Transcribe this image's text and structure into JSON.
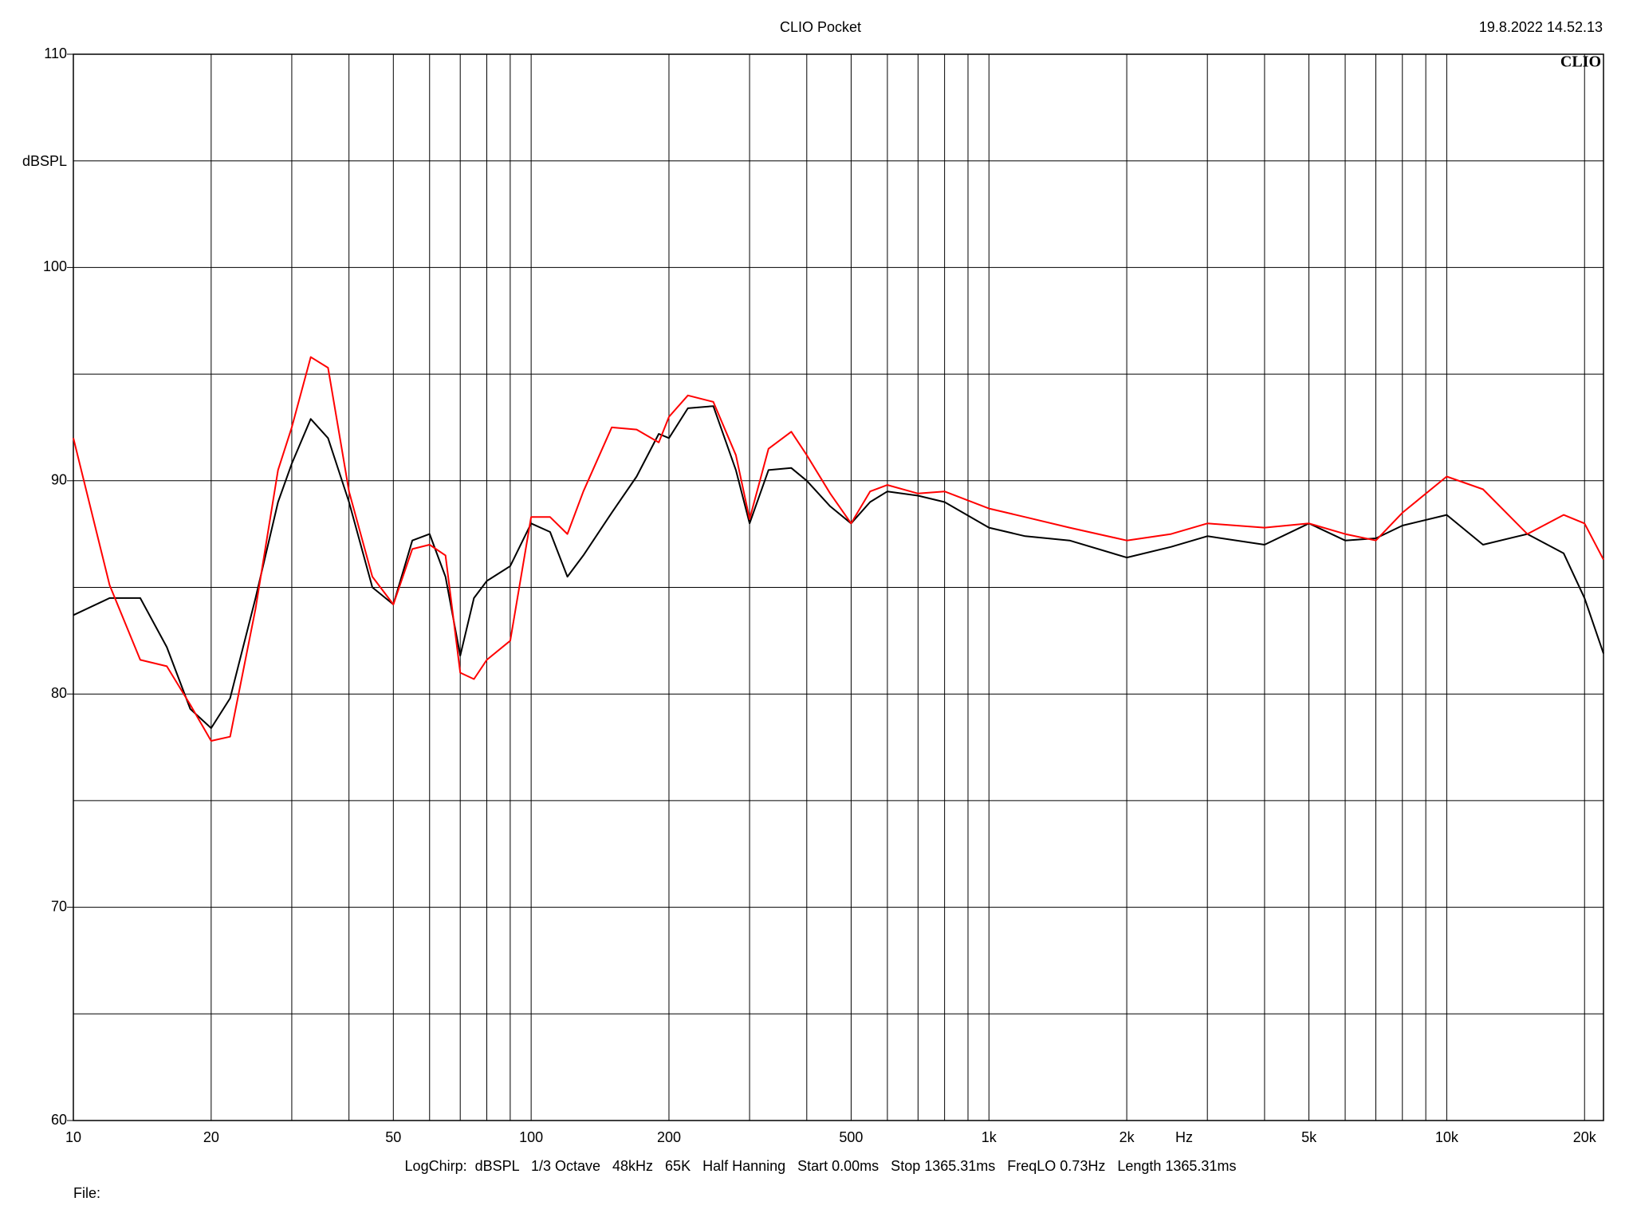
{
  "chart_data": {
    "type": "line",
    "title": "CLIO Pocket",
    "timestamp": "19.8.2022 14.52.13",
    "logo": "CLIO",
    "y_label": "dBSPL",
    "x_label": "Hz",
    "caption": "LogChirp:  dBSPL   1/3 Octave   48kHz   65K   Half Hanning   Start 0.00ms   Stop 1365.31ms   FreqLO 0.73Hz   Length 1365.31ms",
    "file_label": "File:",
    "xscale": "log",
    "grid": true,
    "xlim": [
      10,
      22000
    ],
    "ylim": [
      60,
      110
    ],
    "xticks": [
      10,
      20,
      50,
      100,
      200,
      500,
      {
        "value": 1000,
        "label": "1k"
      },
      {
        "value": 2000,
        "label": "2k"
      },
      {
        "value": 5000,
        "label": "5k"
      },
      {
        "value": 10000,
        "label": "10k"
      },
      {
        "value": 20000,
        "label": "20k"
      }
    ],
    "xgrid_minor": [
      30,
      40,
      60,
      70,
      80,
      90,
      300,
      400,
      600,
      700,
      800,
      900,
      3000,
      4000,
      6000,
      7000,
      8000,
      9000
    ],
    "yticks": [
      60,
      70,
      80,
      90,
      100,
      110
    ],
    "ygrid_minor": [
      65,
      75,
      85,
      95,
      105
    ],
    "x": [
      10,
      12,
      14,
      16,
      18,
      20,
      22,
      25,
      28,
      30,
      33,
      36,
      40,
      45,
      50,
      55,
      60,
      65,
      70,
      75,
      80,
      90,
      100,
      110,
      120,
      130,
      150,
      170,
      190,
      200,
      220,
      250,
      280,
      300,
      330,
      370,
      400,
      450,
      500,
      550,
      600,
      700,
      800,
      1000,
      1200,
      1500,
      2000,
      2500,
      3000,
      4000,
      5000,
      6000,
      7000,
      8000,
      10000,
      12000,
      15000,
      18000,
      20000,
      22000
    ],
    "series": [
      {
        "name": "Black",
        "color": "#000000",
        "values": [
          83.7,
          84.5,
          84.5,
          82.2,
          79.3,
          78.4,
          79.8,
          84.5,
          89.0,
          90.8,
          92.9,
          92.0,
          89.0,
          85.0,
          84.2,
          87.2,
          87.5,
          85.5,
          81.8,
          84.5,
          85.3,
          86.0,
          88.0,
          87.6,
          85.5,
          86.5,
          88.5,
          90.2,
          92.2,
          92.0,
          93.4,
          93.5,
          90.5,
          88.0,
          90.5,
          90.6,
          90.0,
          88.8,
          88.0,
          89.0,
          89.5,
          89.3,
          89.0,
          87.8,
          87.4,
          87.2,
          86.4,
          86.9,
          87.4,
          87.0,
          88.0,
          87.2,
          87.3,
          87.9,
          88.4,
          87.0,
          87.5,
          86.6,
          84.5,
          81.9
        ]
      },
      {
        "name": "Red",
        "color": "#ff0000",
        "values": [
          92.0,
          85.1,
          81.6,
          81.3,
          79.5,
          77.8,
          78.0,
          84.0,
          90.5,
          92.5,
          95.8,
          95.3,
          89.5,
          85.5,
          84.2,
          86.8,
          87.0,
          86.5,
          81.0,
          80.7,
          81.6,
          82.5,
          88.3,
          88.3,
          87.5,
          89.5,
          92.5,
          92.4,
          91.8,
          93.0,
          94.0,
          93.7,
          91.2,
          88.2,
          91.5,
          92.3,
          91.2,
          89.4,
          88.0,
          89.5,
          89.8,
          89.4,
          89.5,
          88.7,
          88.3,
          87.8,
          87.2,
          87.5,
          88.0,
          87.8,
          88.0,
          87.5,
          87.2,
          88.5,
          90.2,
          89.6,
          87.5,
          88.4,
          88.0,
          86.3
        ]
      }
    ]
  }
}
